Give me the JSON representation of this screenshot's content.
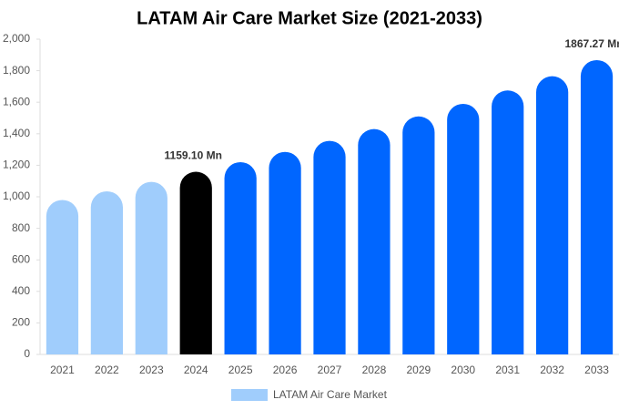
{
  "chart_data": {
    "type": "bar",
    "title": "LATAM Air Care Market Size (2021-2033)",
    "categories": [
      "2021",
      "2022",
      "2023",
      "2024",
      "2025",
      "2026",
      "2027",
      "2028",
      "2029",
      "2030",
      "2031",
      "2032",
      "2033"
    ],
    "series": [
      {
        "name": "LATAM Air Care Market",
        "color": "#a0cdfc",
        "values": [
          980,
          1035,
          1095,
          1159.1,
          1220,
          1285,
          1355,
          1430,
          1510,
          1590,
          1675,
          1765,
          1867.27
        ],
        "value_labels": [
          null,
          null,
          null,
          "1159.10 Mn",
          null,
          null,
          null,
          null,
          null,
          null,
          null,
          null,
          "1867.27 Mn"
        ],
        "bar_colors": [
          "#a0cdfc",
          "#a0cdfc",
          "#a0cdfc",
          "#000000",
          "#0066ff",
          "#0066ff",
          "#0066ff",
          "#0066ff",
          "#0066ff",
          "#0066ff",
          "#0066ff",
          "#0066ff",
          "#0066ff"
        ]
      }
    ],
    "ylim": [
      0,
      2000
    ],
    "yticks": [
      0,
      200,
      400,
      600,
      800,
      {
        "value": 1000,
        "label": "1,000"
      },
      {
        "value": 1200,
        "label": "1,200"
      },
      {
        "value": 1400,
        "label": "1,400"
      },
      {
        "value": 1600,
        "label": "1,600"
      },
      {
        "value": 1800,
        "label": "1,800"
      },
      {
        "value": 2000,
        "label": "2,000"
      }
    ],
    "grid": false
  }
}
